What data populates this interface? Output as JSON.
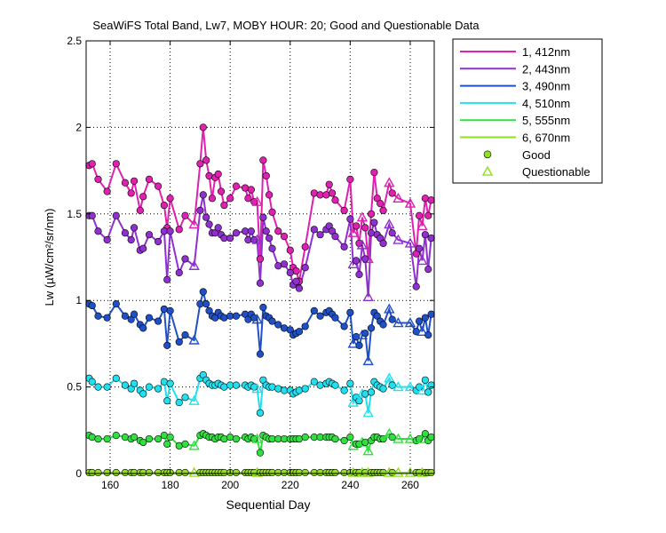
{
  "chart_data": {
    "type": "line",
    "title": "SeaWiFS Total Band,  Lw7, MOBY HOUR: 20;  Good and Questionable Data",
    "xlabel": "Sequential Day",
    "ylabel": "Lw (µW/cm²/sr/nm)",
    "xlim": [
      152,
      268
    ],
    "ylim": [
      0,
      2.5
    ],
    "xticks": [
      160,
      180,
      200,
      220,
      240,
      260
    ],
    "yticks": [
      0,
      0.5,
      1,
      1.5,
      2,
      2.5
    ],
    "ytick_labels": [
      "0",
      "0.5",
      "1",
      "1.5",
      "2",
      "2.5"
    ],
    "grid": true,
    "legend_position": "outside-top-right",
    "legend": {
      "good_label": "Good",
      "questionable_label": "Questionable"
    },
    "x": [
      153,
      154,
      156,
      159,
      162,
      165,
      167,
      168,
      170,
      171,
      173,
      176,
      178,
      179,
      180,
      183,
      185,
      188,
      190,
      191,
      192,
      193,
      194,
      195,
      196,
      197,
      198,
      200,
      202,
      205,
      206,
      207,
      208,
      209,
      210,
      211,
      212,
      213,
      214,
      216,
      218,
      220,
      221,
      222,
      223,
      225,
      228,
      230,
      232,
      233,
      234,
      235,
      238,
      240,
      241,
      242,
      243,
      244,
      245,
      246,
      247,
      248,
      249,
      250,
      251,
      253,
      254,
      256,
      260,
      262,
      263,
      264,
      265,
      266,
      267
    ],
    "questionable_days": [
      188,
      209,
      241,
      244,
      246,
      253,
      256,
      260,
      264
    ],
    "series": [
      {
        "name": "1, 412nm",
        "color": "#e020b0",
        "values": [
          1.78,
          1.79,
          1.7,
          1.63,
          1.79,
          1.68,
          1.62,
          1.69,
          1.52,
          1.6,
          1.7,
          1.66,
          1.55,
          1.42,
          1.59,
          1.41,
          1.49,
          1.44,
          1.79,
          2.0,
          1.81,
          1.72,
          1.59,
          1.71,
          1.73,
          1.63,
          1.55,
          1.59,
          1.66,
          1.65,
          1.59,
          1.64,
          1.57,
          1.57,
          1.24,
          1.81,
          1.72,
          1.61,
          1.51,
          1.4,
          1.37,
          1.29,
          1.19,
          1.17,
          1.11,
          1.31,
          1.62,
          1.61,
          1.61,
          1.67,
          1.62,
          1.58,
          1.52,
          1.7,
          1.39,
          1.43,
          1.33,
          1.48,
          1.42,
          1.24,
          1.5,
          1.74,
          1.59,
          1.56,
          1.52,
          1.68,
          1.62,
          1.59,
          1.56,
          1.27,
          1.49,
          1.43,
          1.59,
          1.49,
          1.58
        ]
      },
      {
        "name": "2, 443nm",
        "color": "#9030d0",
        "values": [
          1.49,
          1.49,
          1.4,
          1.35,
          1.49,
          1.39,
          1.35,
          1.42,
          1.29,
          1.3,
          1.38,
          1.34,
          1.4,
          1.12,
          1.4,
          1.16,
          1.24,
          1.2,
          1.52,
          1.61,
          1.48,
          1.44,
          1.39,
          1.39,
          1.42,
          1.38,
          1.36,
          1.36,
          1.39,
          1.4,
          1.35,
          1.4,
          1.35,
          1.35,
          1.1,
          1.48,
          1.4,
          1.36,
          1.3,
          1.2,
          1.21,
          1.16,
          1.09,
          1.11,
          1.07,
          1.19,
          1.41,
          1.38,
          1.41,
          1.43,
          1.4,
          1.37,
          1.31,
          1.47,
          1.21,
          1.23,
          1.15,
          1.32,
          1.24,
          1.02,
          1.39,
          1.45,
          1.38,
          1.36,
          1.33,
          1.44,
          1.39,
          1.35,
          1.33,
          1.08,
          1.3,
          1.23,
          1.38,
          1.18,
          1.36
        ]
      },
      {
        "name": "3, 490nm",
        "color": "#2050c8",
        "values": [
          0.98,
          0.97,
          0.91,
          0.9,
          0.98,
          0.91,
          0.89,
          0.92,
          0.86,
          0.84,
          0.9,
          0.88,
          0.95,
          0.74,
          0.94,
          0.76,
          0.8,
          0.77,
          0.98,
          1.05,
          0.98,
          0.94,
          0.91,
          0.9,
          0.93,
          0.91,
          0.9,
          0.91,
          0.91,
          0.92,
          0.89,
          0.92,
          0.9,
          0.89,
          0.69,
          0.96,
          0.91,
          0.9,
          0.88,
          0.86,
          0.84,
          0.83,
          0.8,
          0.81,
          0.82,
          0.85,
          0.94,
          0.91,
          0.93,
          0.94,
          0.92,
          0.9,
          0.85,
          0.93,
          0.75,
          0.79,
          0.74,
          0.8,
          0.81,
          0.65,
          0.84,
          0.93,
          0.91,
          0.88,
          0.86,
          0.95,
          0.89,
          0.87,
          0.87,
          0.82,
          0.88,
          0.82,
          0.9,
          0.8,
          0.92
        ]
      },
      {
        "name": "4, 510nm",
        "color": "#20e0f0",
        "values": [
          0.55,
          0.53,
          0.5,
          0.5,
          0.55,
          0.51,
          0.49,
          0.52,
          0.48,
          0.46,
          0.5,
          0.49,
          0.53,
          0.42,
          0.52,
          0.41,
          0.44,
          0.42,
          0.55,
          0.57,
          0.54,
          0.52,
          0.51,
          0.51,
          0.52,
          0.51,
          0.5,
          0.51,
          0.51,
          0.51,
          0.5,
          0.51,
          0.5,
          0.49,
          0.35,
          0.54,
          0.51,
          0.5,
          0.5,
          0.49,
          0.48,
          0.48,
          0.46,
          0.47,
          0.48,
          0.49,
          0.53,
          0.51,
          0.52,
          0.53,
          0.52,
          0.51,
          0.48,
          0.52,
          0.41,
          0.44,
          0.42,
          0.46,
          0.46,
          0.35,
          0.47,
          0.53,
          0.51,
          0.5,
          0.49,
          0.55,
          0.51,
          0.5,
          0.5,
          0.48,
          0.5,
          0.48,
          0.54,
          0.47,
          0.51
        ]
      },
      {
        "name": "5, 555nm",
        "color": "#30e040",
        "values": [
          0.22,
          0.21,
          0.2,
          0.2,
          0.22,
          0.21,
          0.2,
          0.21,
          0.19,
          0.18,
          0.2,
          0.2,
          0.22,
          0.17,
          0.21,
          0.16,
          0.17,
          0.16,
          0.22,
          0.23,
          0.22,
          0.21,
          0.21,
          0.2,
          0.21,
          0.21,
          0.2,
          0.21,
          0.2,
          0.21,
          0.2,
          0.21,
          0.2,
          0.2,
          0.12,
          0.22,
          0.21,
          0.2,
          0.2,
          0.2,
          0.2,
          0.2,
          0.2,
          0.2,
          0.2,
          0.21,
          0.21,
          0.21,
          0.21,
          0.21,
          0.21,
          0.2,
          0.19,
          0.21,
          0.16,
          0.17,
          0.17,
          0.18,
          0.18,
          0.13,
          0.19,
          0.21,
          0.21,
          0.2,
          0.2,
          0.23,
          0.21,
          0.2,
          0.2,
          0.19,
          0.2,
          0.2,
          0.23,
          0.19,
          0.21
        ]
      },
      {
        "name": "6, 670nm",
        "color": "#90e020",
        "values": [
          0.005,
          0.005,
          0.005,
          0.005,
          0.005,
          0.005,
          0.005,
          0.005,
          0.005,
          0.005,
          0.005,
          0.005,
          0.005,
          0.005,
          0.005,
          0.005,
          0.005,
          0.005,
          0.005,
          0.005,
          0.005,
          0.005,
          0.005,
          0.005,
          0.005,
          0.005,
          0.005,
          0.005,
          0.005,
          0.005,
          0.005,
          0.005,
          0.005,
          0.005,
          0.005,
          0.005,
          0.005,
          0.005,
          0.005,
          0.005,
          0.005,
          0.005,
          0.005,
          0.005,
          0.005,
          0.005,
          0.005,
          0.005,
          0.005,
          0.005,
          0.005,
          0.005,
          0.005,
          0.005,
          0.005,
          0.005,
          0.005,
          0.005,
          0.005,
          0.005,
          0.005,
          0.005,
          0.005,
          0.005,
          0.005,
          0.005,
          0.005,
          0.005,
          0.005,
          0.005,
          0.005,
          0.005,
          0.005,
          0.005,
          0.005
        ]
      }
    ]
  }
}
